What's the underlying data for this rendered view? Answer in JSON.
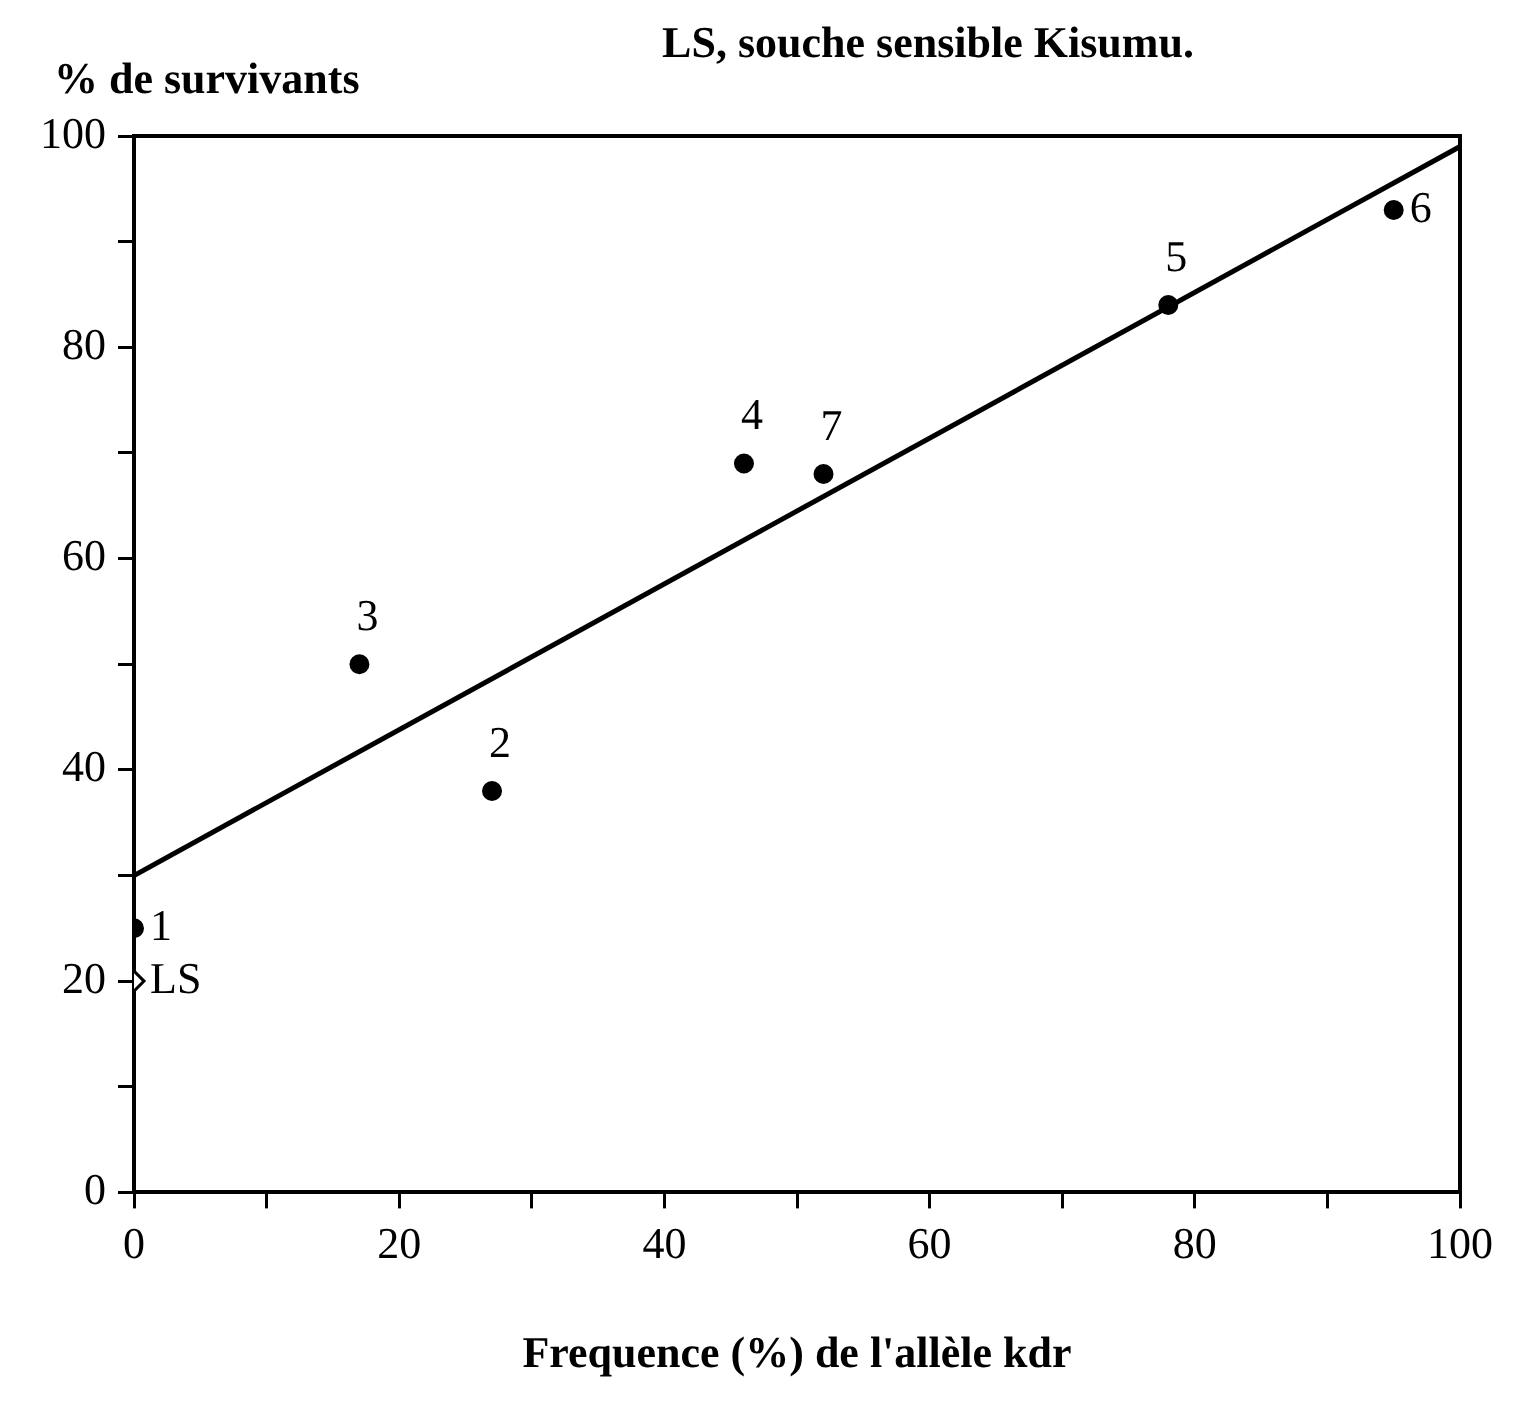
{
  "chart_data": {
    "type": "scatter",
    "ylabel": "% de survivants",
    "xlabel": "Frequence (%) de l'allèle kdr",
    "annotations": [
      "LS, souche sensible Kisumu.",
      {
        "text": "1",
        "x": 0,
        "y": 25
      },
      {
        "text": "LS",
        "x": 0,
        "y": 20
      },
      {
        "text": "2",
        "x": 27,
        "y": 38
      },
      {
        "text": "3",
        "x": 17,
        "y": 50
      },
      {
        "text": "4",
        "x": 46,
        "y": 69
      },
      {
        "text": "5",
        "x": 78,
        "y": 84
      },
      {
        "text": "6",
        "x": 95,
        "y": 93
      },
      {
        "text": "7",
        "x": 52,
        "y": 68
      }
    ],
    "xlim": [
      0,
      100
    ],
    "ylim": [
      0,
      100
    ],
    "xticks": [
      0,
      {
        "value": 10,
        "label": null
      },
      20,
      {
        "value": 30,
        "label": null
      },
      40,
      {
        "value": 50,
        "label": null
      },
      60,
      {
        "value": 70,
        "label": null
      },
      80,
      {
        "value": 90,
        "label": null
      },
      100
    ],
    "yticks": [
      0,
      {
        "value": 10,
        "label": null
      },
      20,
      {
        "value": 30,
        "label": null
      },
      40,
      {
        "value": 50,
        "label": null
      },
      60,
      {
        "value": 70,
        "label": null
      },
      80,
      {
        "value": 90,
        "label": null
      },
      100
    ],
    "grid": false,
    "legend": false,
    "series": [
      {
        "color": "#000000",
        "marker": "circle",
        "x": [
          0,
          27,
          17,
          46,
          78,
          95,
          52
        ],
        "values": [
          25,
          38,
          50,
          69,
          84,
          93,
          68
        ]
      },
      {
        "color": "#000000",
        "marker": "diamond",
        "x": [
          0
        ],
        "values": [
          20
        ]
      },
      {
        "type": "line",
        "color": "#000000",
        "marker": "none",
        "x": [
          0,
          100
        ],
        "values": [
          30,
          99
        ]
      }
    ]
  }
}
